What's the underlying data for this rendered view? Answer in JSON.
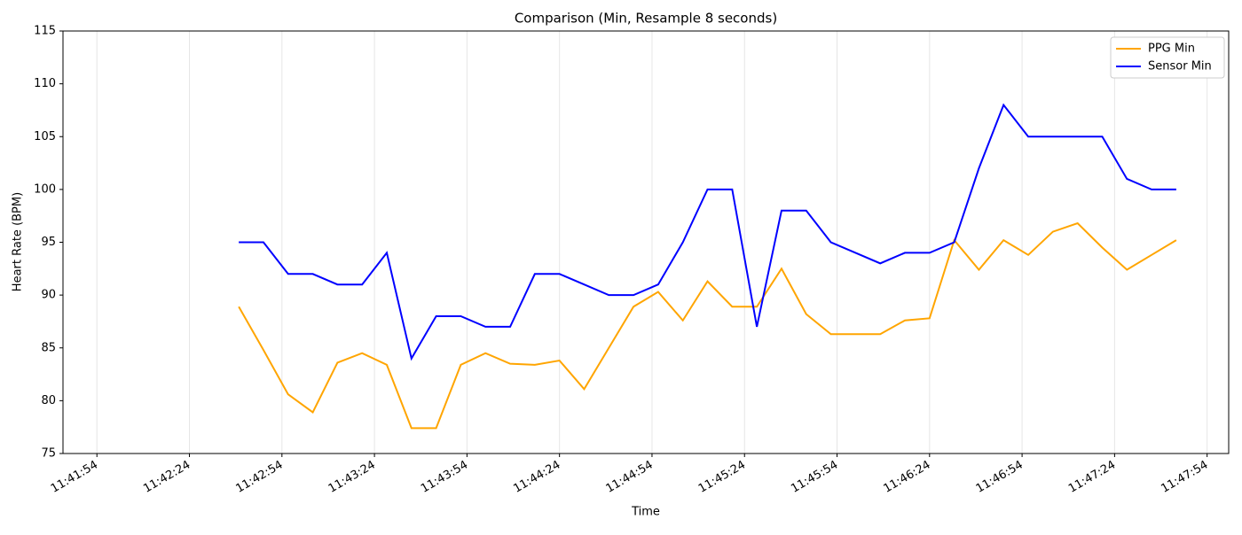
{
  "chart_data": {
    "type": "line",
    "title": "Comparison (Min, Resample 8 seconds)",
    "x_label": "Time",
    "y_label": "Heart Rate (BPM)",
    "x": [
      "11:42:40",
      "11:42:48",
      "11:42:56",
      "11:43:04",
      "11:43:12",
      "11:43:20",
      "11:43:28",
      "11:43:36",
      "11:43:44",
      "11:43:52",
      "11:44:00",
      "11:44:08",
      "11:44:16",
      "11:44:24",
      "11:44:32",
      "11:44:40",
      "11:44:48",
      "11:44:56",
      "11:45:04",
      "11:45:12",
      "11:45:20",
      "11:45:28",
      "11:45:36",
      "11:45:44",
      "11:45:52",
      "11:46:00",
      "11:46:08",
      "11:46:16",
      "11:46:24",
      "11:46:32",
      "11:46:40",
      "11:46:48",
      "11:46:56",
      "11:47:04",
      "11:47:12",
      "11:47:20",
      "11:47:28",
      "11:47:36",
      "11:47:44"
    ],
    "series": [
      {
        "name": "PPG Min",
        "color": "#ffa500",
        "values": [
          88.9,
          84.8,
          80.6,
          78.9,
          83.6,
          84.5,
          83.4,
          77.4,
          77.4,
          83.4,
          84.5,
          83.5,
          83.4,
          83.8,
          81.1,
          85.0,
          88.9,
          90.3,
          87.6,
          91.3,
          88.9,
          88.9,
          92.5,
          88.2,
          86.3,
          86.3,
          86.3,
          87.6,
          87.8,
          95.2,
          92.4,
          95.2,
          93.8,
          96.0,
          96.8,
          94.5,
          92.4,
          93.8,
          95.2
        ]
      },
      {
        "name": "Sensor Min",
        "color": "#0000ff",
        "values": [
          95,
          95,
          92,
          92,
          91,
          91,
          94,
          84,
          88,
          88,
          87,
          87,
          92,
          92,
          91,
          90,
          90,
          91,
          95,
          100,
          100,
          87,
          98,
          98,
          95,
          94,
          93,
          94,
          94,
          95,
          102,
          108,
          105,
          105,
          105,
          105,
          101,
          100,
          100
        ]
      }
    ],
    "xlim": [
      "11:41:43",
      "11:48:01"
    ],
    "xticks": [
      "11:41:54",
      "11:42:24",
      "11:42:54",
      "11:43:24",
      "11:43:54",
      "11:44:24",
      "11:44:54",
      "11:45:24",
      "11:45:54",
      "11:46:24",
      "11:46:54",
      "11:47:24",
      "11:47:54"
    ],
    "ylim": [
      75,
      115
    ],
    "yticks": [
      75,
      80,
      85,
      90,
      95,
      100,
      105,
      110,
      115
    ],
    "grid": "x",
    "legend": "upper right"
  }
}
